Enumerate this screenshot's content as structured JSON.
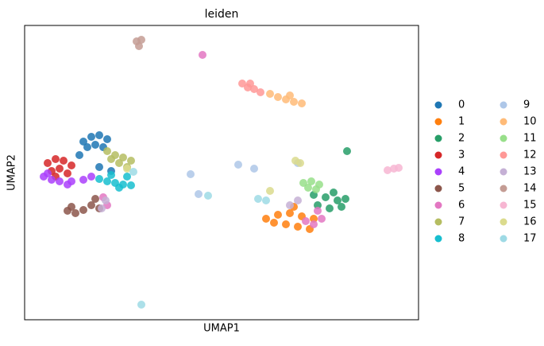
{
  "chart_data": {
    "type": "scatter",
    "title": "leiden",
    "x_label": "UMAP1",
    "y_label": "UMAP2",
    "xlim": [
      0,
      24.8
    ],
    "ylim": [
      0,
      18.5
    ],
    "legend": "outside-right",
    "series": [
      {
        "name": "0",
        "color": "#1f77b4",
        "x": [
          3.7,
          4.2,
          4.7,
          5.2,
          3.95,
          4.45,
          4.95,
          3.45,
          4.7,
          5.45
        ],
        "y": [
          11.2,
          11.5,
          11.6,
          11.35,
          10.85,
          11.0,
          10.85,
          10.35,
          9.6,
          9.35
        ]
      },
      {
        "name": "1",
        "color": "#ff7f0e",
        "x": [
          15.2,
          15.95,
          16.7,
          17.45,
          18.2,
          15.7,
          16.45,
          17.2,
          17.95,
          16.95
        ],
        "y": [
          6.35,
          6.6,
          6.7,
          6.5,
          6.35,
          6.1,
          6.0,
          5.85,
          5.7,
          7.1
        ]
      },
      {
        "name": "2",
        "color": "#279e68",
        "x": [
          18.2,
          18.95,
          19.7,
          19.95,
          19.2,
          18.45,
          19.45,
          20.2,
          20.3
        ],
        "y": [
          7.85,
          7.7,
          7.5,
          7.1,
          7.0,
          7.2,
          8.0,
          7.6,
          10.6
        ]
      },
      {
        "name": "3",
        "color": "#d62728",
        "x": [
          1.45,
          1.95,
          2.45,
          2.95,
          1.7,
          2.2,
          2.7,
          1.95
        ],
        "y": [
          9.85,
          10.1,
          10.0,
          9.7,
          9.35,
          9.5,
          9.2,
          9.0
        ]
      },
      {
        "name": "4",
        "color": "#aa40fc",
        "x": [
          1.2,
          1.7,
          2.2,
          2.95,
          3.7,
          4.2,
          2.7,
          1.45
        ],
        "y": [
          9.0,
          8.8,
          8.7,
          8.7,
          8.8,
          9.0,
          8.5,
          9.2
        ]
      },
      {
        "name": "5",
        "color": "#8c564b",
        "x": [
          2.7,
          3.2,
          3.7,
          2.95,
          4.2,
          4.7,
          4.45
        ],
        "y": [
          6.85,
          6.7,
          6.9,
          7.1,
          7.2,
          7.0,
          7.6
        ]
      },
      {
        "name": "6",
        "color": "#e377c2",
        "x": [
          18.2,
          18.7,
          17.7,
          18.45,
          4.95,
          5.2,
          11.2
        ],
        "y": [
          6.0,
          6.35,
          6.2,
          6.85,
          7.7,
          7.2,
          16.65
        ]
      },
      {
        "name": "7",
        "color": "#b5bd61",
        "x": [
          5.2,
          5.7,
          6.2,
          6.7,
          5.95,
          6.45,
          5.45
        ],
        "y": [
          10.6,
          10.35,
          10.2,
          10.0,
          9.85,
          9.6,
          10.1
        ]
      },
      {
        "name": "8",
        "color": "#17becf",
        "x": [
          4.7,
          5.2,
          5.7,
          6.2,
          6.7,
          5.45,
          6.45,
          5.95
        ],
        "y": [
          8.85,
          8.7,
          8.6,
          8.5,
          8.45,
          9.1,
          9.0,
          8.3
        ]
      },
      {
        "name": "9",
        "color": "#aec7e8",
        "x": [
          10.45,
          13.45,
          14.45,
          17.2,
          10.95
        ],
        "y": [
          9.15,
          9.75,
          9.5,
          9.85,
          7.9
        ]
      },
      {
        "name": "10",
        "color": "#ffbb78",
        "x": [
          15.45,
          15.95,
          16.45,
          16.95,
          17.45,
          16.7
        ],
        "y": [
          14.2,
          14.0,
          13.85,
          13.7,
          13.6,
          14.1
        ]
      },
      {
        "name": "11",
        "color": "#98df8a",
        "x": [
          17.55,
          18.05,
          18.55,
          17.85,
          18.35
        ],
        "y": [
          8.6,
          8.7,
          8.5,
          8.3,
          8.2
        ]
      },
      {
        "name": "12",
        "color": "#ff9896",
        "x": [
          13.7,
          14.05,
          14.45,
          14.85,
          14.2
        ],
        "y": [
          14.85,
          14.6,
          14.5,
          14.3,
          14.85
        ]
      },
      {
        "name": "13",
        "color": "#c5b0d5",
        "x": [
          5.1,
          4.85,
          17.2,
          16.7
        ],
        "y": [
          7.5,
          7.0,
          7.5,
          7.2
        ]
      },
      {
        "name": "14",
        "color": "#c49c94",
        "x": [
          7.05,
          7.35,
          7.2
        ],
        "y": [
          17.5,
          17.6,
          17.2
        ]
      },
      {
        "name": "15",
        "color": "#f7b6d2",
        "x": [
          22.85,
          23.25,
          23.55
        ],
        "y": [
          9.4,
          9.5,
          9.55
        ]
      },
      {
        "name": "16",
        "color": "#dbdb8d",
        "x": [
          17.05,
          17.35,
          15.45,
          6.45
        ],
        "y": [
          10.0,
          9.85,
          8.1,
          9.5
        ]
      },
      {
        "name": "17",
        "color": "#9edae5",
        "x": [
          14.7,
          15.2,
          6.85,
          11.55,
          7.35
        ],
        "y": [
          7.6,
          7.5,
          9.3,
          7.8,
          0.95
        ]
      }
    ]
  }
}
